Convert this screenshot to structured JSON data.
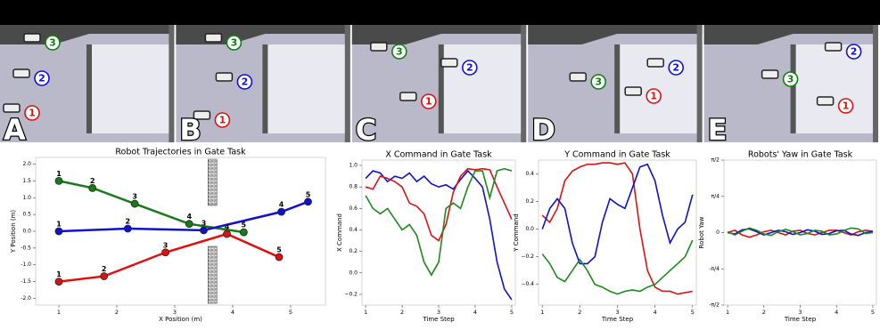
{
  "panels": [
    {
      "label": "A",
      "markers": [
        {
          "text": "1",
          "color": "#e01010"
        },
        {
          "text": "2",
          "color": "#1010e0"
        },
        {
          "text": "3",
          "color": "#108010"
        }
      ]
    },
    {
      "label": "B",
      "markers": [
        {
          "text": "1",
          "color": "#e01010"
        },
        {
          "text": "2",
          "color": "#1010e0"
        },
        {
          "text": "3",
          "color": "#108010"
        }
      ]
    },
    {
      "label": "C",
      "markers": [
        {
          "text": "1",
          "color": "#e01010"
        },
        {
          "text": "2",
          "color": "#1010e0"
        },
        {
          "text": "3",
          "color": "#108010"
        }
      ]
    },
    {
      "label": "D",
      "markers": [
        {
          "text": "1",
          "color": "#e01010"
        },
        {
          "text": "2",
          "color": "#1010e0"
        },
        {
          "text": "3",
          "color": "#108010"
        }
      ]
    },
    {
      "label": "E",
      "markers": [
        {
          "text": "1",
          "color": "#e01010"
        },
        {
          "text": "2",
          "color": "#1010e0"
        },
        {
          "text": "3",
          "color": "#108010"
        }
      ]
    }
  ],
  "chart_data": [
    {
      "type": "trajectory",
      "title": "Robot Trajectories in Gate Task",
      "xlabel": "X Position (m)",
      "ylabel": "Y Position (m)",
      "xlim": [
        0.6,
        5.6
      ],
      "xticks": [
        1,
        2,
        3,
        4,
        5
      ],
      "ylim": [
        -2.2,
        2.2
      ],
      "yticks": [
        {
          "value": -2.0,
          "label": "-2.0"
        },
        -1.5,
        {
          "value": -1.0,
          "label": "-1.0"
        },
        -0.5,
        {
          "value": 0.0,
          "label": "0.0"
        },
        0.5,
        {
          "value": 1.0,
          "label": "1.0"
        },
        1.5,
        {
          "value": 2.0,
          "label": "2.0"
        }
      ],
      "series": [
        {
          "color": "#1a7a1a",
          "x": [
            1,
            1.58,
            2.31,
            3.25,
            4.19
          ],
          "values": [
            1.5,
            1.29,
            0.82,
            0.22,
            -0.03
          ],
          "point_labels": [
            "1",
            "2",
            "3",
            "4",
            "5"
          ]
        },
        {
          "color": "#1010d0",
          "x": [
            1,
            2.19,
            3.5,
            4.84,
            5.3
          ],
          "values": [
            0,
            0.08,
            0.03,
            0.58,
            0.88
          ],
          "point_labels": [
            "1",
            "2",
            "3",
            "4",
            "5"
          ]
        },
        {
          "color": "#e01010",
          "x": [
            1,
            1.78,
            2.84,
            3.9,
            4.8
          ],
          "values": [
            -1.5,
            -1.34,
            -0.63,
            -0.08,
            -0.77
          ],
          "point_labels": [
            "1",
            "2",
            "3",
            "4",
            "5"
          ]
        }
      ]
    },
    {
      "type": "line",
      "title": "X Command in Gate Task",
      "xlabel": "Time Step",
      "ylabel": "X Command",
      "xlim": [
        0.9,
        5.1
      ],
      "xticks": [
        1,
        2,
        3,
        4,
        5
      ],
      "ylim": [
        -0.3,
        1.05
      ],
      "yticks": [
        {
          "value": -0.2,
          "label": "−0.2"
        },
        {
          "value": 0.0,
          "label": "0.0"
        },
        0.2,
        0.4,
        0.6,
        0.8,
        {
          "value": 1.0,
          "label": "1.0"
        }
      ],
      "x": [
        1,
        1.2,
        1.4,
        1.6,
        1.8,
        2,
        2.2,
        2.4,
        2.6,
        2.8,
        3,
        3.2,
        3.4,
        3.6,
        3.8,
        4,
        4.2,
        4.4,
        4.6,
        4.8,
        5
      ],
      "series": [
        {
          "color": "#1010d0",
          "values": [
            0.88,
            0.95,
            0.93,
            0.85,
            0.9,
            0.88,
            0.93,
            0.85,
            0.9,
            0.83,
            0.8,
            0.82,
            0.78,
            0.87,
            0.95,
            0.88,
            0.8,
            0.5,
            0.1,
            -0.15,
            -0.25
          ]
        },
        {
          "color": "#e01010",
          "values": [
            0.8,
            0.78,
            0.9,
            0.88,
            0.85,
            0.8,
            0.65,
            0.62,
            0.55,
            0.35,
            0.3,
            0.45,
            0.75,
            0.9,
            0.97,
            0.96,
            0.97,
            0.96,
            0.8,
            0.65,
            0.5
          ]
        },
        {
          "color": "#1a8a1a",
          "values": [
            0.72,
            0.6,
            0.55,
            0.6,
            0.5,
            0.4,
            0.45,
            0.35,
            0.1,
            -0.02,
            0.1,
            0.6,
            0.65,
            0.6,
            0.8,
            0.95,
            0.95,
            0.7,
            0.95,
            0.97,
            0.95
          ]
        }
      ]
    },
    {
      "type": "line",
      "title": "Y Command in Gate Task",
      "xlabel": "Time Step",
      "ylabel": "Y Command",
      "xlim": [
        0.9,
        5.1
      ],
      "xticks": [
        1,
        2,
        3,
        4,
        5
      ],
      "ylim": [
        -0.55,
        0.5
      ],
      "yticks": [
        {
          "value": -0.4,
          "label": "−0.4"
        },
        {
          "value": -0.2,
          "label": "−0.2"
        },
        {
          "value": 0.0,
          "label": "0.0"
        },
        0.2,
        0.4
      ],
      "x": [
        1,
        1.2,
        1.4,
        1.6,
        1.8,
        2,
        2.2,
        2.4,
        2.6,
        2.8,
        3,
        3.2,
        3.4,
        3.6,
        3.8,
        4,
        4.2,
        4.4,
        4.6,
        4.8,
        5
      ],
      "series": [
        {
          "color": "#e01010",
          "values": [
            0.1,
            0.05,
            0.15,
            0.35,
            0.42,
            0.45,
            0.47,
            0.47,
            0.48,
            0.48,
            0.47,
            0.48,
            0.4,
            0.0,
            -0.3,
            -0.42,
            -0.45,
            -0.45,
            -0.47,
            -0.46,
            -0.45
          ]
        },
        {
          "color": "#1010d0",
          "values": [
            0.0,
            0.15,
            0.22,
            0.15,
            -0.1,
            -0.25,
            -0.25,
            -0.2,
            0.05,
            0.22,
            0.18,
            0.15,
            0.3,
            0.45,
            0.47,
            0.35,
            0.1,
            -0.1,
            0.0,
            0.05,
            0.25
          ]
        },
        {
          "color": "#1a8a1a",
          "values": [
            -0.18,
            -0.25,
            -0.35,
            -0.38,
            -0.3,
            -0.22,
            -0.3,
            -0.4,
            -0.42,
            -0.45,
            -0.47,
            -0.45,
            -0.44,
            -0.45,
            -0.42,
            -0.4,
            -0.35,
            -0.3,
            -0.25,
            -0.2,
            -0.08
          ]
        }
      ]
    },
    {
      "type": "line",
      "title": "Robots' Yaw in Gate Task",
      "xlabel": "Time Step",
      "ylabel": "Robot Yaw",
      "xlim": [
        0.9,
        5.1
      ],
      "xticks": [
        1,
        2,
        3,
        4,
        5
      ],
      "ylim": [
        -1.5708,
        1.5708
      ],
      "yticks": [
        {
          "value": -1.5708,
          "label": "-π/2"
        },
        {
          "value": -0.7854,
          "label": "-π/4"
        },
        0,
        {
          "value": 0.7854,
          "label": "π/4"
        },
        {
          "value": 1.5708,
          "label": "π/2"
        }
      ],
      "x": [
        1,
        1.2,
        1.4,
        1.6,
        1.8,
        2,
        2.2,
        2.4,
        2.6,
        2.8,
        3,
        3.2,
        3.4,
        3.6,
        3.8,
        4,
        4.2,
        4.4,
        4.6,
        4.8,
        5
      ],
      "series": [
        {
          "color": "#e01010",
          "values": [
            0,
            0.05,
            -0.05,
            -0.1,
            -0.05,
            0.02,
            0.05,
            0,
            -0.05,
            0.03,
            0.05,
            -0.02,
            -0.05,
            0,
            0.05,
            0.05,
            0,
            -0.05,
            0.02,
            0.05,
            0.03
          ]
        },
        {
          "color": "#1010d0",
          "values": [
            0,
            -0.03,
            0.06,
            0.08,
            0.02,
            -0.05,
            0,
            0.05,
            0.02,
            -0.04,
            0,
            0.06,
            0.03,
            -0.04,
            -0.02,
            0.04,
            0.05,
            -0.03,
            -0.06,
            0,
            0.02
          ]
        },
        {
          "color": "#1a8a1a",
          "values": [
            0.02,
            -0.05,
            0.03,
            0.1,
            0.05,
            -0.03,
            -0.06,
            0.02,
            0.07,
            0.02,
            -0.05,
            -0.02,
            0.05,
            0.03,
            -0.05,
            -0.03,
            0.04,
            0.1,
            0.08,
            -0.02,
            0
          ]
        }
      ]
    }
  ]
}
